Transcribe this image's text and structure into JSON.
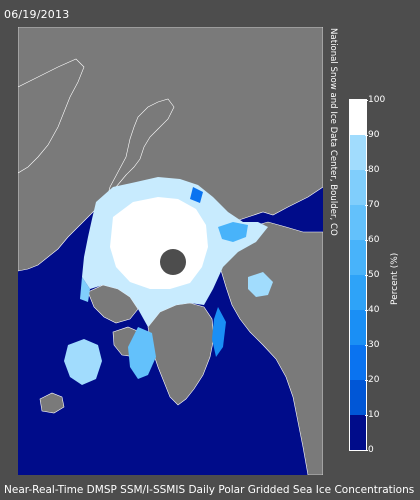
{
  "date": "06/19/2013",
  "credit": "National Snow and Ice Data Center, Boulder, CO",
  "footer": "Near-Real-Time DMSP SSM/I-SSMIS Daily Polar Gridded Sea Ice Concentrations",
  "legend": {
    "unit_label": "Percent (%)",
    "ticks": [
      "0",
      "10",
      "20",
      "30",
      "40",
      "50",
      "60",
      "70",
      "80",
      "90",
      "100"
    ],
    "colors": [
      "#000c8a",
      "#0056d6",
      "#0a73f0",
      "#1a8ff5",
      "#2ea3f8",
      "#48b3fa",
      "#63c1fb",
      "#80cefc",
      "#a1dcfd",
      "#c8ebfe",
      "#ffffff"
    ]
  },
  "map_colors": {
    "ocean": "#000c8a",
    "land": "#7a7a7a",
    "pole_hole": "#4d4d4d",
    "coast": "#ffffff"
  }
}
